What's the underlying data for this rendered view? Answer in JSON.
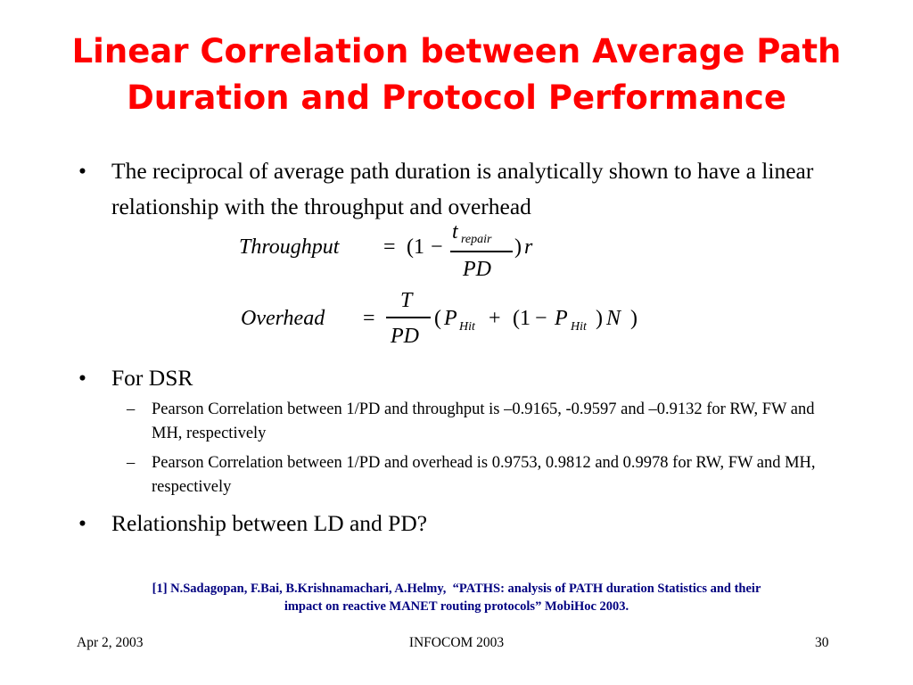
{
  "slide": {
    "title_line1": "Linear Correlation between Average Path",
    "title_line2": "Duration and Protocol Performance",
    "bullets": [
      {
        "marker": "•",
        "text": "The reciprocal of average path duration is analytically shown to have a linear relationship with the throughput and overhead"
      },
      {
        "marker": "•",
        "text": "For DSR"
      },
      {
        "marker": "•",
        "text": "Relationship between LD and PD?"
      }
    ],
    "subbullets": [
      {
        "marker": "–",
        "text": "Pearson Correlation between 1/PD and throughput is –0.9165, -0.9597 and –0.9132 for RW, FW and MH, respectively"
      },
      {
        "marker": "–",
        "text": "Pearson Correlation between 1/PD and overhead is 0.9753, 0.9812 and 0.9978 for RW, FW and MH, respectively"
      }
    ],
    "equations": {
      "throughput": {
        "lhs": "Throughput",
        "equals": "=",
        "open": "(1",
        "minus": "−",
        "num_t": "t",
        "num_sub": "repair",
        "den": "PD",
        "close": ")",
        "r": "r"
      },
      "overhead": {
        "lhs": "Overhead",
        "equals": "=",
        "num": "T",
        "den": "PD",
        "open": "(",
        "p": "P",
        "hit": "Hit",
        "plus": "+",
        "open2": "(1",
        "minus": "−",
        "p2": "P",
        "hit2": "Hit",
        "close_n": ")",
        "n": "N",
        "close": ")"
      }
    },
    "reference_line1": "[1] N.Sadagopan, F.Bai, B.Krishnamachari, A.Helmy,  “PATHS: analysis of PATH duration Statistics and their",
    "reference_line2": "impact on reactive MANET routing protocols” MobiHoc 2003.",
    "footer": {
      "date": "Apr 2, 2003",
      "conference": "INFOCOM 2003",
      "page": "30"
    }
  },
  "colors": {
    "title": "#ff0000",
    "reference": "#000080",
    "text": "#000000",
    "background": "#ffffff"
  }
}
